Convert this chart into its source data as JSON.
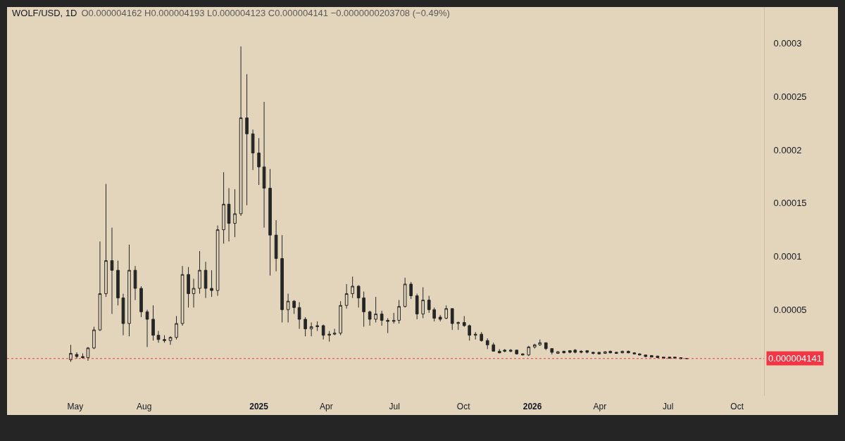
{
  "chart_data": {
    "type": "candlestick",
    "title": "WOLF/USD, 1D",
    "subtitle": "O0.000004162 H0.000004193 L0.000004123 C0.000004141 −0.0000000203708 (−0.49%)",
    "x": [
      "2024-04-25",
      "2024-05-03",
      "2024-05-11",
      "2024-05-18",
      "2024-05-26",
      "2024-06-03",
      "2024-06-11",
      "2024-06-19",
      "2024-06-27",
      "2024-07-04",
      "2024-07-12",
      "2024-07-20",
      "2024-07-28",
      "2024-08-05",
      "2024-08-13",
      "2024-08-20",
      "2024-08-28",
      "2024-09-05",
      "2024-09-13",
      "2024-09-21",
      "2024-09-29",
      "2024-10-06",
      "2024-10-14",
      "2024-10-22",
      "2024-10-30",
      "2024-11-07",
      "2024-11-15",
      "2024-11-22",
      "2024-11-30",
      "2024-12-08",
      "2024-12-16",
      "2024-12-24",
      "2025-01-01",
      "2025-01-08",
      "2025-01-16",
      "2025-01-24",
      "2025-02-01",
      "2025-02-09",
      "2025-02-17",
      "2025-02-24",
      "2025-03-04",
      "2025-03-12",
      "2025-03-20",
      "2025-03-28",
      "2025-04-05",
      "2025-04-12",
      "2025-04-20",
      "2025-04-28",
      "2025-05-06",
      "2025-05-14",
      "2025-05-21",
      "2025-05-29",
      "2025-06-06",
      "2025-06-14",
      "2025-06-22",
      "2025-06-30",
      "2025-07-07",
      "2025-07-15",
      "2025-07-23",
      "2025-07-31",
      "2025-08-08",
      "2025-08-16",
      "2025-08-23",
      "2025-08-31",
      "2025-09-08",
      "2025-09-16",
      "2025-09-24",
      "2025-10-02",
      "2025-10-09",
      "2025-10-17",
      "2025-10-25",
      "2025-11-02",
      "2025-11-10",
      "2025-11-18",
      "2025-11-25",
      "2025-12-03",
      "2025-12-11",
      "2025-12-19",
      "2025-12-27",
      "2026-01-04",
      "2026-01-11",
      "2026-01-19",
      "2026-01-27",
      "2026-02-04",
      "2026-02-12",
      "2026-02-20",
      "2026-02-27",
      "2026-03-07",
      "2026-03-15",
      "2026-03-23",
      "2026-03-31",
      "2026-04-08",
      "2026-04-15",
      "2026-04-23",
      "2026-05-01",
      "2026-05-09",
      "2026-05-17",
      "2026-05-24",
      "2026-06-01",
      "2026-06-09",
      "2026-06-17",
      "2026-06-25",
      "2026-07-03",
      "2026-07-10",
      "2026-07-18",
      "2026-07-26"
    ],
    "ohlc": [
      [
        3e-06,
        1.7e-05,
        1e-06,
        9e-06
      ],
      [
        8e-06,
        1e-05,
        4e-06,
        6e-06
      ],
      [
        6e-06,
        9e-06,
        4e-06,
        5e-06
      ],
      [
        5e-06,
        1.5e-05,
        2e-06,
        1.4e-05
      ],
      [
        1.4e-05,
        3.4e-05,
        1.3e-05,
        3.1e-05
      ],
      [
        3.1e-05,
        0.000114,
        3e-05,
        6.5e-05
      ],
      [
        6.5e-05,
        0.000168,
        6.2e-05,
        9.6e-05
      ],
      [
        9.6e-05,
        0.000127,
        4.6e-05,
        8.7e-05
      ],
      [
        8.7e-05,
        9.6e-05,
        5.4e-05,
        6.1e-05
      ],
      [
        6.1e-05,
        6.5e-05,
        2.6e-05,
        3.7e-05
      ],
      [
        3.7e-05,
        0.000111,
        2.5e-05,
        8.7e-05
      ],
      [
        8.7e-05,
        9.1e-05,
        5.9e-05,
        7e-05
      ],
      [
        7e-05,
        7.2e-05,
        4.3e-05,
        4.8e-05
      ],
      [
        4.8e-05,
        5e-05,
        1.5e-05,
        4.1e-05
      ],
      [
        4.1e-05,
        5.4e-05,
        2.1e-05,
        2.6e-05
      ],
      [
        2.6e-05,
        3e-05,
        1.9e-05,
        2.2e-05
      ],
      [
        2.2e-05,
        2.6e-05,
        1.9e-05,
        2.1e-05
      ],
      [
        2.1e-05,
        2.5e-05,
        1.7e-05,
        2.4e-05
      ],
      [
        2.4e-05,
        4.4e-05,
        2.2e-05,
        3.7e-05
      ],
      [
        3.7e-05,
        9.1e-05,
        3.5e-05,
        8.3e-05
      ],
      [
        8.3e-05,
        9e-05,
        5.2e-05,
        6.5e-05
      ],
      [
        6.5e-05,
        7.9e-05,
        5.2e-05,
        7e-05
      ],
      [
        7e-05,
        0.000105,
        6.5e-05,
        8.7e-05
      ],
      [
        8.7e-05,
        9.5e-05,
        6.1e-05,
        7e-05
      ],
      [
        7e-05,
        8.7e-05,
        6.2e-05,
        6.8e-05
      ],
      [
        6.8e-05,
        0.000129,
        6.3e-05,
        0.000125
      ],
      [
        0.000125,
        0.000179,
        0.000112,
        0.000149
      ],
      [
        0.000149,
        0.000164,
        0.000114,
        0.000131
      ],
      [
        0.000131,
        0.000163,
        0.000118,
        0.00014
      ],
      [
        0.00014,
        0.000297,
        0.000138,
        0.00023
      ],
      [
        0.00023,
        0.000271,
        0.000148,
        0.000215
      ],
      [
        0.000215,
        0.000219,
        0.000181,
        0.000197
      ],
      [
        0.000197,
        0.000211,
        0.000167,
        0.000184
      ],
      [
        0.000184,
        0.000245,
        0.000127,
        0.000164
      ],
      [
        0.000164,
        0.000182,
        8.2e-05,
        0.00012
      ],
      [
        0.00012,
        0.000134,
        8.6e-05,
        9.8e-05
      ],
      [
        9.8e-05,
        0.00012,
        3.8e-05,
        5e-05
      ],
      [
        5e-05,
        6.5e-05,
        3.8e-05,
        5.8e-05
      ],
      [
        5.8e-05,
        5.9e-05,
        4.6e-05,
        5.2e-05
      ],
      [
        5.2e-05,
        5.7e-05,
        3.2e-05,
        4.1e-05
      ],
      [
        4.1e-05,
        4.3e-05,
        2.5e-05,
        3.2e-05
      ],
      [
        3.2e-05,
        3.8e-05,
        2.5e-05,
        3.4e-05
      ],
      [
        3.4e-05,
        3.9e-05,
        3e-05,
        3.5e-05
      ],
      [
        3.5e-05,
        3.6e-05,
        2.2e-05,
        2.6e-05
      ],
      [
        2.6e-05,
        3e-05,
        2e-05,
        2.7e-05
      ],
      [
        2.7e-05,
        3.2e-05,
        2.6e-05,
        2.8e-05
      ],
      [
        2.8e-05,
        5.8e-05,
        2.6e-05,
        5.4e-05
      ],
      [
        5.4e-05,
        7.4e-05,
        5.1e-05,
        6.5e-05
      ],
      [
        6.5e-05,
        8.1e-05,
        6.1e-05,
        7.2e-05
      ],
      [
        7.2e-05,
        7.3e-05,
        5.2e-05,
        6.1e-05
      ],
      [
        6.1e-05,
        6.7e-05,
        3.4e-05,
        4.8e-05
      ],
      [
        4.8e-05,
        4.9e-05,
        3.5e-05,
        4.1e-05
      ],
      [
        4.1e-05,
        6.2e-05,
        3.8e-05,
        4.6e-05
      ],
      [
        4.6e-05,
        4.9e-05,
        3.5e-05,
        4e-05
      ],
      [
        4e-05,
        4.2e-05,
        2.8e-05,
        3.9e-05
      ],
      [
        3.9e-05,
        4.7e-05,
        3.7e-05,
        4e-05
      ],
      [
        4e-05,
        5.9e-05,
        3.7e-05,
        5.3e-05
      ],
      [
        5.3e-05,
        8e-05,
        5.2e-05,
        7.4e-05
      ],
      [
        7.4e-05,
        7.6e-05,
        6e-05,
        6.3e-05
      ],
      [
        6.3e-05,
        6.5e-05,
        4.1e-05,
        4.6e-05
      ],
      [
        4.6e-05,
        7.1e-05,
        4.2e-05,
        5.9e-05
      ],
      [
        5.9e-05,
        6.3e-05,
        4.7e-05,
        5e-05
      ],
      [
        5e-05,
        5.2e-05,
        3.9e-05,
        4.2e-05
      ],
      [
        4.3e-05,
        4.5e-05,
        3.9e-05,
        4.1e-05
      ],
      [
        4.2e-05,
        5.4e-05,
        4.1e-05,
        5.1e-05
      ],
      [
        5.1e-05,
        5.1e-05,
        3.1e-05,
        3.7e-05
      ],
      [
        3.7e-05,
        3.9e-05,
        3.1e-05,
        3.8e-05
      ],
      [
        3.8e-05,
        4.4e-05,
        3.4e-05,
        3.5e-05
      ],
      [
        3.5e-05,
        3.6e-05,
        2.1e-05,
        2.6e-05
      ],
      [
        2.6e-05,
        2.9e-05,
        2.2e-05,
        2.7e-05
      ],
      [
        2.7e-05,
        2.9e-05,
        2e-05,
        2.1e-05
      ],
      [
        2.1e-05,
        2.3e-05,
        1.3e-05,
        1.7e-05
      ],
      [
        1.7e-05,
        1.9e-05,
        1.1e-05,
        1.1e-05
      ],
      [
        1.1e-05,
        1.3e-05,
        9e-06,
        9.5e-06
      ],
      [
        1.2e-05,
        1.3e-05,
        1e-05,
        1.1e-05
      ],
      [
        1.1e-05,
        1.3e-05,
        1e-05,
        1.2e-05
      ],
      [
        1.2e-05,
        1.25e-05,
        8e-06,
        8.5e-06
      ],
      [
        8.5e-06,
        9e-06,
        7e-06,
        7.5e-06
      ],
      [
        7.5e-06,
        1.6e-05,
        6.5e-06,
        1.5e-05
      ],
      [
        1.5e-05,
        1.8e-05,
        1.35e-05,
        1.7e-05
      ],
      [
        1.7e-05,
        2.2e-05,
        1.6e-05,
        1.9e-05
      ],
      [
        1.9e-05,
        1.9e-05,
        1.2e-05,
        1.35e-05
      ],
      [
        1.35e-05,
        1.35e-05,
        8e-06,
        1e-05
      ],
      [
        9e-06,
        1.1e-05,
        8.5e-06,
        1.05e-05
      ],
      [
        1.1e-05,
        1.15e-05,
        9e-06,
        9.5e-06
      ],
      [
        1.15e-05,
        1.2e-05,
        9e-06,
        1e-05
      ],
      [
        1.2e-05,
        1.3e-05,
        9e-06,
        1e-05
      ],
      [
        1.1e-05,
        1.2e-05,
        9e-06,
        1e-05
      ],
      [
        1.15e-05,
        1.2e-05,
        9e-06,
        1e-05
      ],
      [
        1e-05,
        1.05e-05,
        8e-06,
        9e-06
      ],
      [
        1e-05,
        1e-05,
        8e-06,
        8.5e-06
      ],
      [
        9e-06,
        1.1e-05,
        8.5e-06,
        1.05e-05
      ],
      [
        1.1e-05,
        1.15e-05,
        9e-06,
        9.5e-06
      ],
      [
        1e-05,
        1.05e-05,
        8.5e-06,
        9e-06
      ],
      [
        9.5e-06,
        1.15e-05,
        9e-06,
        1.1e-05
      ],
      [
        1.1e-05,
        1.15e-05,
        9e-06,
        9.5e-06
      ],
      [
        9.5e-06,
        1e-05,
        8e-06,
        8.5e-06
      ],
      [
        8.5e-06,
        9e-06,
        7e-06,
        7.5e-06
      ],
      [
        7.5e-06,
        7.5e-06,
        5.5e-06,
        6e-06
      ],
      [
        7e-06,
        7e-06,
        5.5e-06,
        5.5e-06
      ],
      [
        6.5e-06,
        6.5e-06,
        4.5e-06,
        5e-06
      ],
      [
        5.5e-06,
        5.5e-06,
        4e-06,
        4.5e-06
      ],
      [
        5.5e-06,
        5.5e-06,
        4e-06,
        4.5e-06
      ],
      [
        5.5e-06,
        5.5e-06,
        4e-06,
        4.5e-06
      ],
      [
        5e-06,
        5e-06,
        3.5e-06,
        4e-06
      ],
      [
        4.162e-06,
        4.193e-06,
        4.123e-06,
        4.141e-06
      ]
    ],
    "color": "#262626",
    "xlim": [
      "2024-01-31",
      "2026-11-06"
    ],
    "xticks": [
      {
        "value": "2024-05-01",
        "label": "May"
      },
      {
        "value": "2024-08-01",
        "label": "Aug"
      },
      {
        "value": "2025-01-01",
        "label": "2025"
      },
      {
        "value": "2025-04-01",
        "label": "Apr"
      },
      {
        "value": "2025-07-01",
        "label": "Jul"
      },
      {
        "value": "2025-10-01",
        "label": "Oct"
      },
      {
        "value": "2026-01-01",
        "label": "2026"
      },
      {
        "value": "2026-04-01",
        "label": "Apr"
      },
      {
        "value": "2026-07-01",
        "label": "Jul"
      },
      {
        "value": "2026-10-01",
        "label": "Oct"
      }
    ],
    "ylim": [
      -3.1e-05,
      0.000334
    ],
    "yticks": [
      {
        "value": 5e-05,
        "label": "0.00005"
      },
      {
        "value": 0.0001,
        "label": "0.0001"
      },
      {
        "value": 0.00015,
        "label": "0.00015"
      },
      {
        "value": 0.0002,
        "label": "0.0002"
      },
      {
        "value": 0.00025,
        "label": "0.00025"
      },
      {
        "value": 0.0003,
        "label": "0.0003"
      }
    ],
    "ref_lines": [
      {
        "axis": "y",
        "value": 4.141e-06,
        "label": "0.000004141",
        "color": "#f23645",
        "line_style": "dotted"
      }
    ]
  }
}
